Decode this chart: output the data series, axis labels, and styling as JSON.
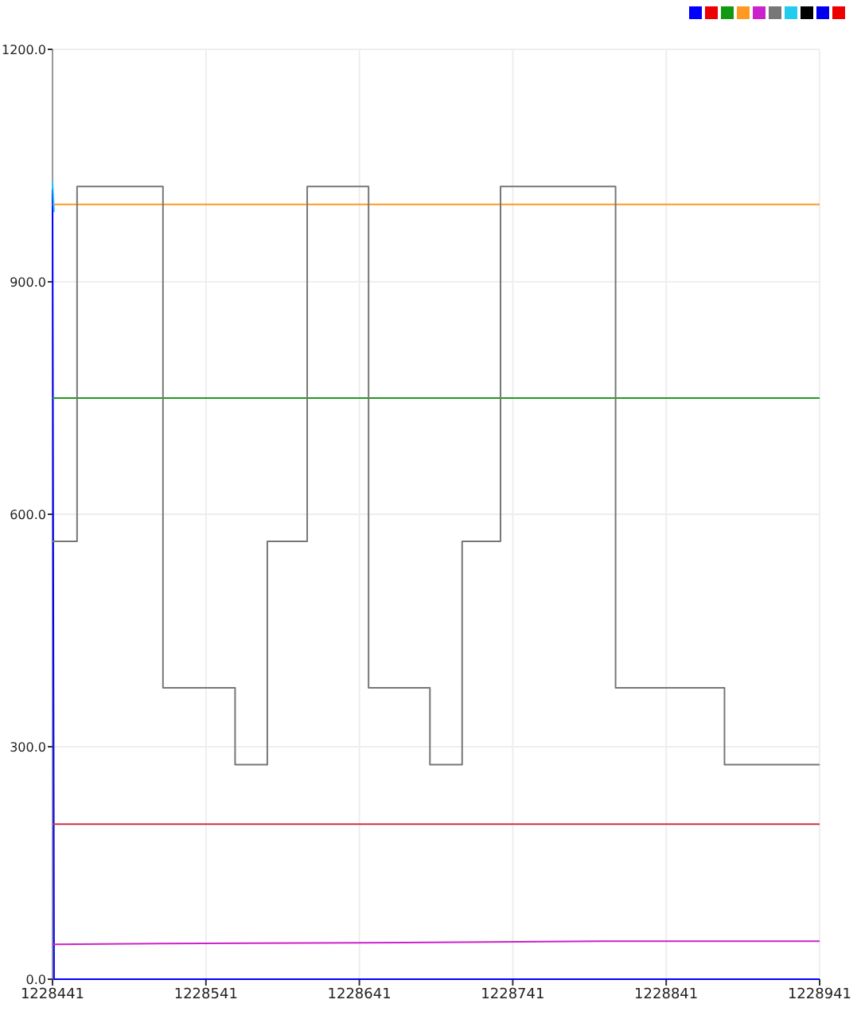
{
  "chart_data": {
    "type": "line",
    "xlim": [
      1228441,
      1228941
    ],
    "ylim": [
      0,
      1200
    ],
    "xticks": [
      1228441,
      1228541,
      1228641,
      1228741,
      1228841,
      1228941
    ],
    "yticks": [
      {
        "value": 0,
        "label": "0.0"
      },
      {
        "value": 300,
        "label": "300.0"
      },
      {
        "value": 600,
        "label": "600.0"
      },
      {
        "value": 900,
        "label": "900.0"
      },
      {
        "value": 1200,
        "label": "1200.0"
      }
    ],
    "grid": true,
    "marker": "none",
    "line_style": "solid",
    "series": [
      {
        "color": "#0000ff",
        "x": [
          1228441,
          1228442,
          1228941
        ],
        "values": [
          1020,
          0,
          0
        ]
      },
      {
        "color": "#cc3344",
        "x": [
          1228441,
          1228941
        ],
        "values": [
          200,
          200
        ]
      },
      {
        "color": "#229922",
        "x": [
          1228441,
          1228941
        ],
        "values": [
          750,
          750
        ]
      },
      {
        "color": "#ff9922",
        "x": [
          1228441,
          1228941
        ],
        "values": [
          1000,
          1000
        ]
      },
      {
        "color": "#cc22cc",
        "x": [
          1228441,
          1228510,
          1228641,
          1228800,
          1228941
        ],
        "values": [
          45,
          46,
          47,
          49,
          49
        ]
      },
      {
        "color": "#777777",
        "type": "step",
        "x": [
          1228441,
          1228457,
          1228513,
          1228560,
          1228581,
          1228607,
          1228647,
          1228687,
          1228708,
          1228733,
          1228808,
          1228879,
          1228941
        ],
        "values": [
          565,
          1023,
          376,
          277,
          565,
          1023,
          376,
          277,
          565,
          1023,
          376,
          277,
          277
        ]
      },
      {
        "color": "#22ccee",
        "x": [
          1228441,
          1228442
        ],
        "values": [
          1030,
          990
        ]
      }
    ]
  }
}
